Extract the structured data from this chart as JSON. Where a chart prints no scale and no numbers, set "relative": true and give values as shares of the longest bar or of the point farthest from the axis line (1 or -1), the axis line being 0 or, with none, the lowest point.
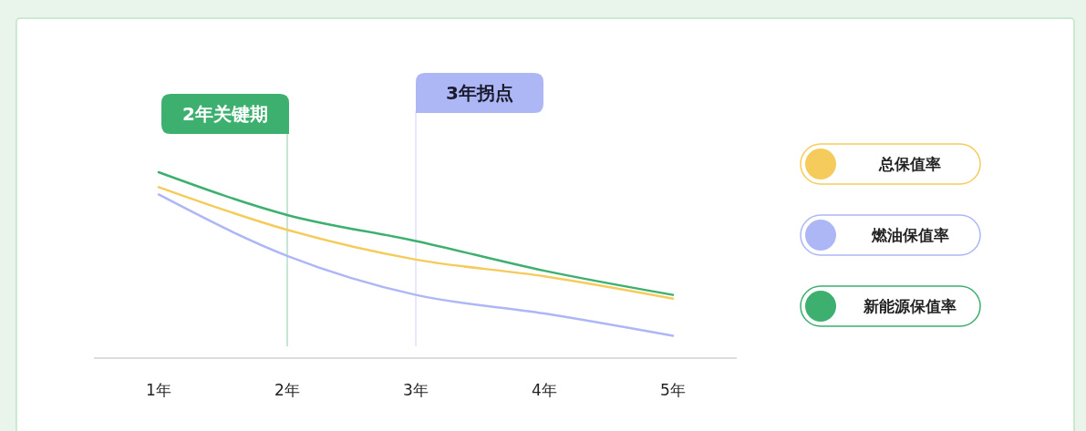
{
  "chart_data": {
    "type": "line",
    "relative": true,
    "categories": [
      "1年",
      "2年",
      "3年",
      "4年",
      "5年"
    ],
    "series": [
      {
        "name": "总保值率",
        "color": "#f5cb5c",
        "values": [
          0.92,
          0.69,
          0.53,
          0.44,
          0.32
        ]
      },
      {
        "name": "燃油保值率",
        "color": "#aeb7f5",
        "values": [
          0.88,
          0.55,
          0.34,
          0.24,
          0.12
        ]
      },
      {
        "name": "新能源保值率",
        "color": "#3daf6f",
        "values": [
          1,
          0.77,
          0.63,
          0.47,
          0.34
        ]
      }
    ],
    "ref_lines": [
      {
        "axis": "x",
        "value": "2年",
        "label": "2年关键期",
        "color": "#3daf6f"
      },
      {
        "axis": "x",
        "value": "3年",
        "label": "3年拐点",
        "color": "#aeb7f5"
      }
    ],
    "legend": "right",
    "grid": false,
    "marker": "none",
    "line_style": "solid"
  }
}
